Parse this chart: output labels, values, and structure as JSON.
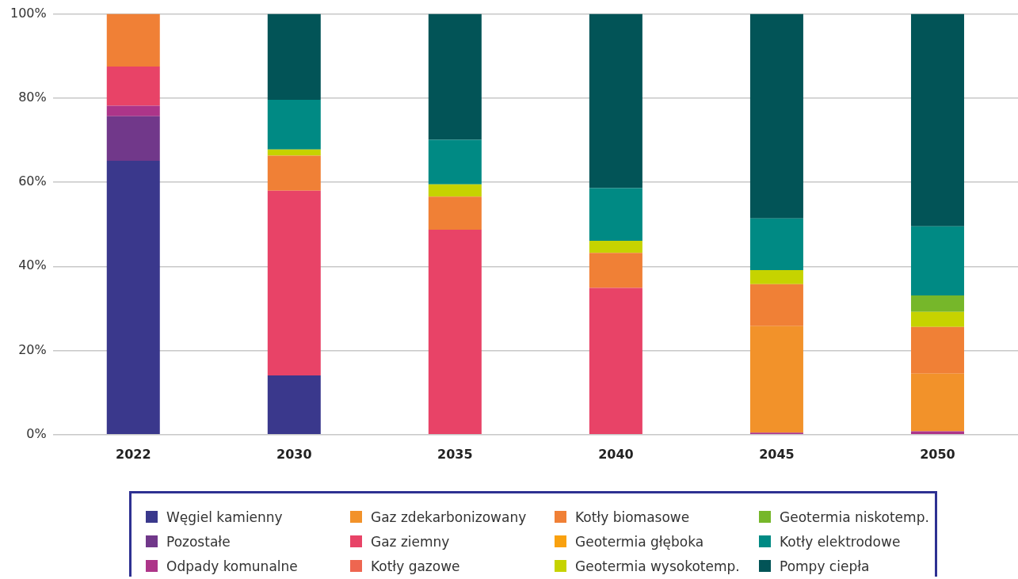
{
  "chart_data": {
    "type": "bar",
    "stacked": true,
    "categories": [
      "2022",
      "2030",
      "2035",
      "2040",
      "2045",
      "2050"
    ],
    "ylim": [
      0,
      100
    ],
    "yticks": [
      {
        "value": 0,
        "label": "0%"
      },
      {
        "value": 20,
        "label": "20%"
      },
      {
        "value": 40,
        "label": "40%"
      },
      {
        "value": 60,
        "label": "60%"
      },
      {
        "value": 80,
        "label": "80%"
      },
      {
        "value": 100,
        "label": "100%"
      }
    ],
    "grid": "y",
    "legend": "bottom",
    "series": [
      {
        "name": "Węgiel kamienny",
        "color": "#3a388c",
        "values": [
          65.1,
          14.1,
          0,
          0,
          0,
          0
        ]
      },
      {
        "name": "Pozostałe",
        "color": "#71388a",
        "values": [
          10.6,
          0,
          0,
          0,
          0,
          0
        ]
      },
      {
        "name": "Odpady komunalne",
        "color": "#ad3589",
        "values": [
          2.5,
          0,
          0,
          0,
          0.5,
          0.8
        ]
      },
      {
        "name": "Gaz zdekarbonizowany",
        "color": "#f2922a",
        "values": [
          0,
          0,
          0,
          0,
          25.3,
          13.7
        ]
      },
      {
        "name": "Gaz ziemny",
        "color": "#e84367",
        "values": [
          9.3,
          43.9,
          48.7,
          34.9,
          0,
          0
        ]
      },
      {
        "name": "Kotły gazowe",
        "color": "#ee6650",
        "values": [
          0,
          0,
          0,
          0,
          0,
          0
        ]
      },
      {
        "name": "Kotły biomasowe",
        "color": "#f08036",
        "values": [
          12.5,
          8.3,
          7.9,
          8.3,
          10.0,
          11.1
        ]
      },
      {
        "name": "Geotermia głęboka",
        "color": "#f9a10f",
        "values": [
          0,
          0,
          0,
          0,
          0,
          0
        ]
      },
      {
        "name": "Geotermia wysokotemp.",
        "color": "#c6d300",
        "values": [
          0,
          1.5,
          2.9,
          2.9,
          3.3,
          3.6
        ]
      },
      {
        "name": "Geotermia niskotemp.",
        "color": "#76b72a",
        "values": [
          0,
          0,
          0,
          0,
          0,
          3.9
        ]
      },
      {
        "name": "Kotły elektrodowe",
        "color": "#008a84",
        "values": [
          0,
          11.8,
          10.6,
          12.5,
          12.3,
          16.4
        ]
      },
      {
        "name": "Pompy ciepła",
        "color": "#025457",
        "values": [
          0,
          20.4,
          29.9,
          41.4,
          48.6,
          50.5
        ]
      }
    ]
  }
}
